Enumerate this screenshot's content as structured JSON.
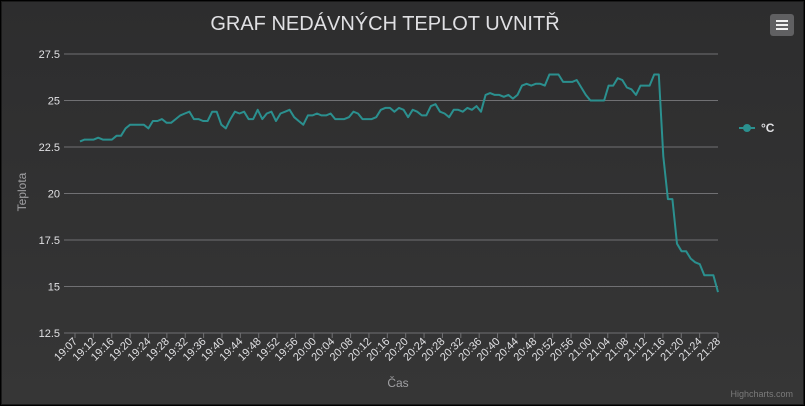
{
  "chart_data": {
    "type": "line",
    "title": "GRAF NEDÁVNÝCH TEPLOT UVNITŘ",
    "xlabel": "Čas",
    "ylabel": "Teplota",
    "ylim": [
      12.5,
      27.5
    ],
    "y_ticks": [
      "12.5",
      "15",
      "17.5",
      "20",
      "22.5",
      "25",
      "27.5"
    ],
    "x_ticks": [
      "19:07",
      "19:12",
      "19:16",
      "19:20",
      "19:24",
      "19:28",
      "19:32",
      "19:36",
      "19:40",
      "19:44",
      "19:48",
      "19:52",
      "19:56",
      "20:00",
      "20:04",
      "20:08",
      "20:12",
      "20:16",
      "20:20",
      "20:24",
      "20:28",
      "20:32",
      "20:36",
      "20:40",
      "20:44",
      "20:48",
      "20:52",
      "20:56",
      "21:00",
      "21:04",
      "21:08",
      "21:12",
      "21:16",
      "21:20",
      "21:24",
      "21:28"
    ],
    "grid": true,
    "legend_position": "right",
    "series": [
      {
        "name": "°C",
        "color": "#2b908f",
        "values": [
          22.8,
          22.9,
          22.9,
          22.9,
          23.0,
          22.9,
          22.9,
          22.9,
          23.1,
          23.1,
          23.5,
          23.7,
          23.7,
          23.7,
          23.7,
          23.5,
          23.9,
          23.9,
          24.0,
          23.8,
          23.8,
          24.0,
          24.2,
          24.3,
          24.4,
          24.0,
          24.0,
          23.9,
          23.9,
          24.4,
          24.4,
          23.7,
          23.5,
          24.0,
          24.4,
          24.3,
          24.4,
          24.0,
          24.0,
          24.5,
          24.0,
          24.3,
          24.4,
          23.9,
          24.3,
          24.4,
          24.5,
          24.1,
          23.9,
          23.7,
          24.2,
          24.2,
          24.3,
          24.2,
          24.2,
          24.3,
          24.0,
          24.0,
          24.0,
          24.1,
          24.4,
          24.3,
          24.0,
          24.0,
          24.0,
          24.1,
          24.5,
          24.6,
          24.6,
          24.4,
          24.6,
          24.5,
          24.1,
          24.5,
          24.4,
          24.2,
          24.2,
          24.7,
          24.8,
          24.4,
          24.3,
          24.1,
          24.5,
          24.5,
          24.4,
          24.6,
          24.5,
          24.7,
          24.4,
          25.3,
          25.4,
          25.3,
          25.3,
          25.2,
          25.3,
          25.1,
          25.3,
          25.8,
          25.9,
          25.8,
          25.9,
          25.9,
          25.8,
          26.4,
          26.4,
          26.4,
          26.0,
          26.0,
          26.0,
          26.1,
          25.7,
          25.3,
          25.0,
          25.0,
          25.0,
          25.0,
          25.8,
          25.8,
          26.2,
          26.1,
          25.7,
          25.6,
          25.3,
          25.8,
          25.8,
          25.8,
          26.4,
          26.4,
          22.0,
          19.7,
          19.7,
          17.3,
          16.9,
          16.9,
          16.5,
          16.3,
          16.2,
          15.6,
          15.6,
          15.6,
          14.7
        ]
      }
    ]
  },
  "menu": {
    "icon": "hamburger-menu-icon"
  },
  "credits": "Highcharts.com"
}
